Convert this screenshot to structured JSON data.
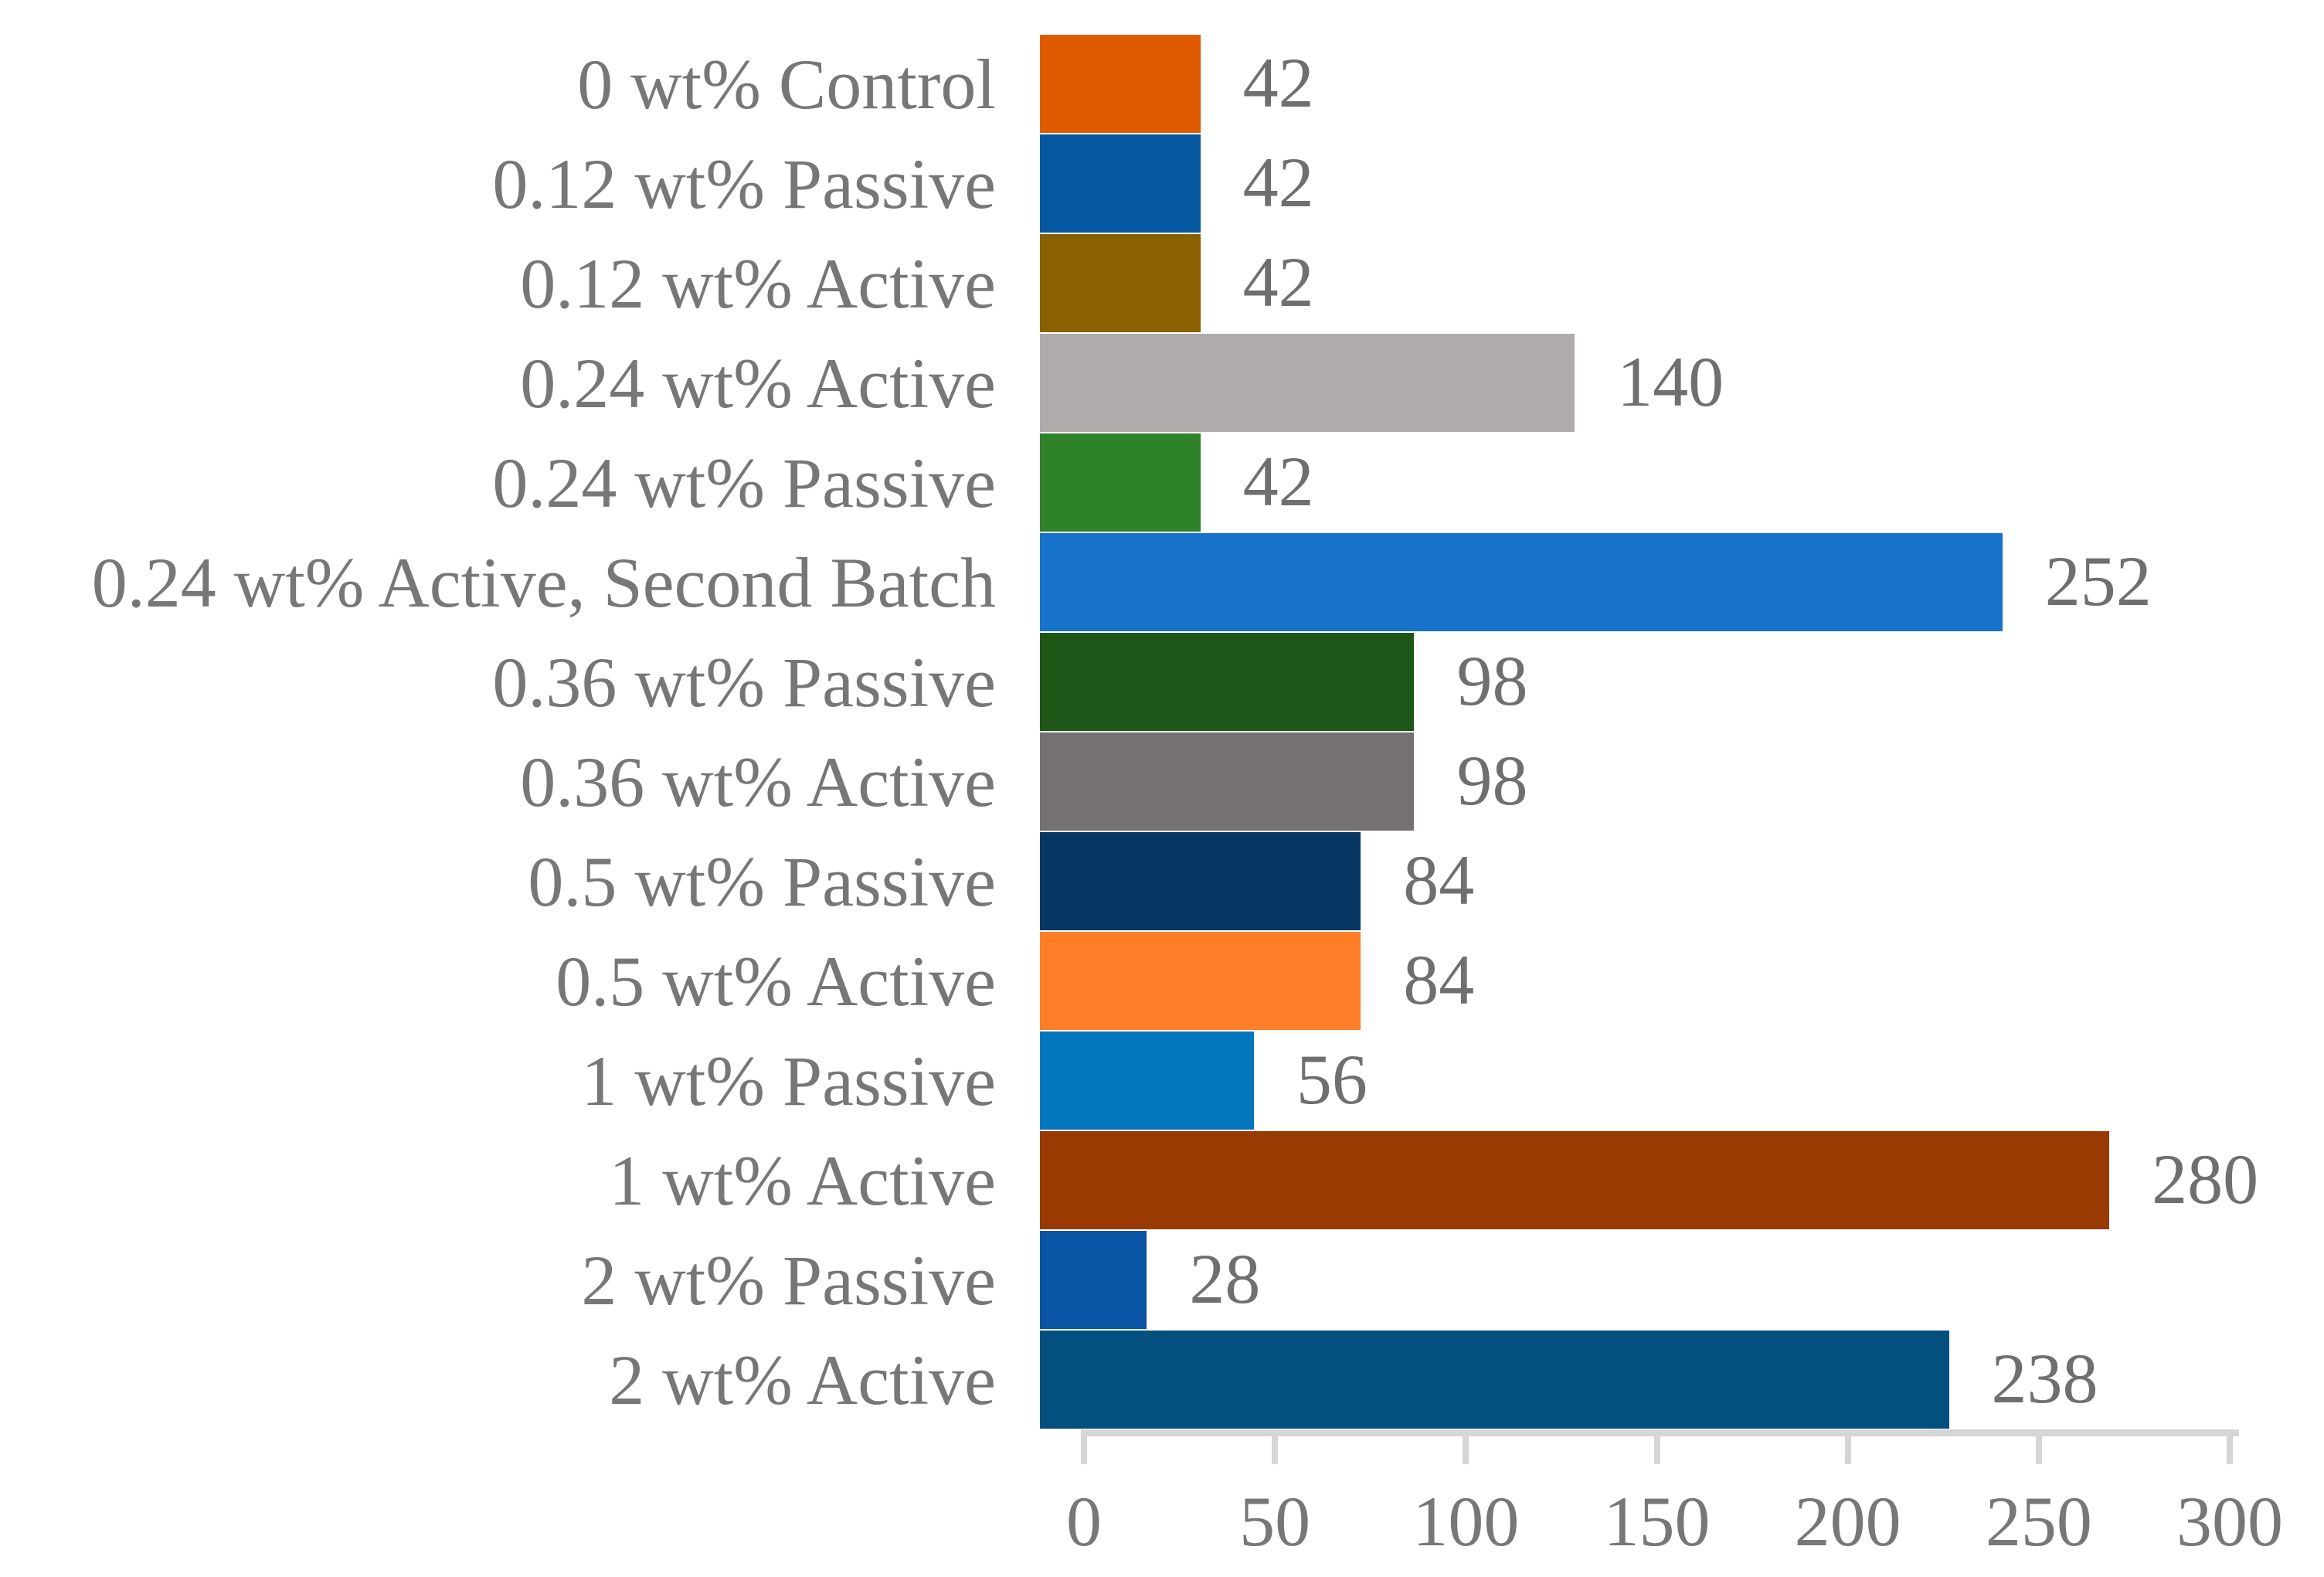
{
  "chart_data": {
    "type": "bar",
    "orientation": "horizontal",
    "title": "",
    "xlabel": "",
    "ylabel": "",
    "categories": [
      "0 wt% Control",
      "0.12 wt% Passive",
      "0.12 wt% Active",
      "0.24 wt% Active",
      "0.24 wt% Passive",
      "0.24 wt% Active, Second Batch",
      "0.36 wt% Passive",
      "0.36 wt% Active",
      "0.5 wt% Passive",
      "0.5 wt% Active",
      "1 wt% Passive",
      "1 wt% Active",
      "2 wt% Passive",
      "2 wt% Active"
    ],
    "values": [
      42,
      42,
      42,
      140,
      42,
      252,
      98,
      98,
      84,
      84,
      56,
      280,
      28,
      238
    ],
    "data_labels": [
      "42",
      "42",
      "42",
      "140",
      "42",
      "252",
      "98",
      "98",
      "84",
      "84",
      "56",
      "280",
      "28",
      "238"
    ],
    "bar_colors": [
      "#E05A00",
      "#05579F",
      "#8A6100",
      "#AFABAB",
      "#2E8227",
      "#1773C9",
      "#1E5617",
      "#757071",
      "#073763",
      "#FD7E26",
      "#0376BE",
      "#983A02",
      "#0A55A5",
      "#03507E"
    ],
    "x_ticks": [
      "0",
      "50",
      "100",
      "150",
      "200",
      "250",
      "300"
    ],
    "xlim": [
      0,
      300
    ],
    "grid": false,
    "legend": false,
    "text_color": "#777777",
    "axis_color": "#D6D6D6",
    "background_color": "#FFFFFF"
  }
}
